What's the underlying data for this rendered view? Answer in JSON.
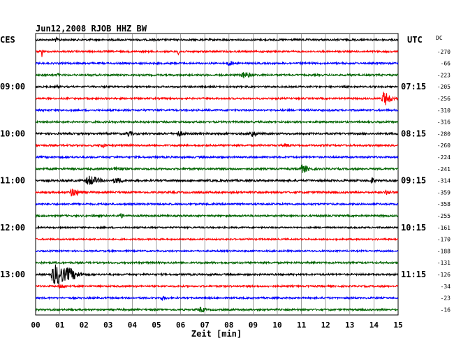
{
  "chart_data": {
    "type": "line",
    "title": "Jun12,2008  RJOB HHZ BW",
    "xlabel": "Zeit [min]",
    "left_zone": "CES",
    "right_zone": "UTC",
    "dc_header": "DC",
    "xlim": [
      0,
      15
    ],
    "x_ticks": [
      "00",
      "01",
      "02",
      "03",
      "04",
      "05",
      "06",
      "07",
      "08",
      "09",
      "10",
      "11",
      "12",
      "13",
      "14",
      "15"
    ],
    "colors": [
      "#000000",
      "#ff0000",
      "#0000ff",
      "#006400"
    ],
    "left_hour_labels": [
      {
        "trace": 4,
        "label": "09:00"
      },
      {
        "trace": 8,
        "label": "10:00"
      },
      {
        "trace": 12,
        "label": "11:00"
      },
      {
        "trace": 16,
        "label": "12:00"
      },
      {
        "trace": 20,
        "label": "13:00"
      }
    ],
    "right_hour_labels": [
      {
        "trace": 4,
        "label": "07:15"
      },
      {
        "trace": 8,
        "label": "08:15"
      },
      {
        "trace": 12,
        "label": "09:15"
      },
      {
        "trace": 16,
        "label": "10:15"
      },
      {
        "trace": 20,
        "label": "11:15"
      }
    ],
    "dc_values": [
      -270,
      -66,
      -223,
      -205,
      -256,
      -310,
      -316,
      -280,
      -260,
      -224,
      -241,
      -314,
      -359,
      -358,
      -255,
      -161,
      -170,
      -188,
      -131,
      -126,
      -34,
      -23,
      -16
    ],
    "series": [
      {
        "noise": 0.3,
        "events": [
          [
            0.8,
            0.5,
            0.15
          ]
        ]
      },
      {
        "noise": 0.28,
        "events": [
          [
            0.25,
            1.8,
            0.05
          ],
          [
            5.9,
            0.8,
            0.1
          ]
        ]
      },
      {
        "noise": 0.3,
        "events": [
          [
            8.0,
            0.8,
            0.15
          ]
        ]
      },
      {
        "noise": 0.3,
        "events": [
          [
            8.6,
            0.9,
            0.3
          ],
          [
            0.9,
            0.6,
            0.05
          ]
        ]
      },
      {
        "noise": 0.28,
        "events": [
          [
            0.9,
            0.5,
            0.05
          ]
        ]
      },
      {
        "noise": 0.28,
        "events": [
          [
            14.4,
            2.2,
            0.3
          ]
        ]
      },
      {
        "noise": 0.3,
        "events": []
      },
      {
        "noise": 0.3,
        "events": []
      },
      {
        "noise": 0.32,
        "events": [
          [
            3.8,
            0.8,
            0.2
          ],
          [
            5.9,
            0.7,
            0.2
          ],
          [
            8.9,
            1.0,
            0.2
          ]
        ]
      },
      {
        "noise": 0.3,
        "events": [
          [
            2.7,
            0.5,
            0.2
          ],
          [
            10.3,
            0.5,
            0.2
          ]
        ]
      },
      {
        "noise": 0.3,
        "events": []
      },
      {
        "noise": 0.32,
        "events": [
          [
            11.0,
            1.2,
            0.3
          ],
          [
            3.3,
            0.5,
            0.3
          ]
        ]
      },
      {
        "noise": 0.34,
        "events": [
          [
            2.2,
            1.4,
            0.4
          ],
          [
            3.3,
            0.8,
            0.3
          ],
          [
            13.9,
            0.9,
            0.1
          ]
        ]
      },
      {
        "noise": 0.32,
        "events": [
          [
            1.5,
            1.2,
            0.3
          ],
          [
            14.5,
            0.6,
            0.2
          ]
        ]
      },
      {
        "noise": 0.3,
        "events": []
      },
      {
        "noise": 0.3,
        "events": [
          [
            3.5,
            0.8,
            0.1
          ]
        ]
      },
      {
        "noise": 0.26,
        "events": []
      },
      {
        "noise": 0.26,
        "events": []
      },
      {
        "noise": 0.26,
        "events": []
      },
      {
        "noise": 0.3,
        "events": []
      },
      {
        "noise": 0.3,
        "events": [
          [
            0.8,
            3.2,
            0.55
          ],
          [
            1.4,
            1.2,
            0.4
          ]
        ]
      },
      {
        "noise": 0.28,
        "events": [
          [
            1.0,
            0.6,
            0.2
          ]
        ]
      },
      {
        "noise": 0.28,
        "events": [
          [
            5.2,
            0.5,
            0.2
          ]
        ]
      },
      {
        "noise": 0.3,
        "events": [
          [
            6.8,
            0.7,
            0.2
          ]
        ]
      }
    ]
  }
}
